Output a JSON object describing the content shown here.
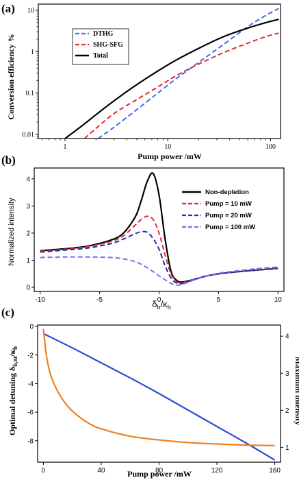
{
  "chart_data": [
    {
      "panel": "(a)",
      "type": "line",
      "xlabel": "Pump power /mW",
      "ylabel": "Conversion efficiency %",
      "xscale": "log",
      "yscale": "log",
      "xlim": [
        0.55,
        125
      ],
      "ylim": [
        0.008,
        14
      ],
      "xticks": [
        {
          "value": 1,
          "label": "1"
        },
        {
          "value": 10,
          "label": "10"
        },
        {
          "value": 100,
          "label": "100"
        }
      ],
      "yticks": [
        {
          "value": 0.01,
          "label": "0.01"
        },
        {
          "value": 0.1,
          "label": "0.1"
        },
        {
          "value": 1,
          "label": "1"
        },
        {
          "value": 10,
          "label": "10"
        }
      ],
      "legend_position": "top-left",
      "series": [
        {
          "name": "DTHG",
          "color": "#3a6ee8",
          "dash": "dashed",
          "x": [
            2.1,
            3,
            5,
            8,
            12,
            20,
            35,
            60,
            90,
            120
          ],
          "y": [
            0.008,
            0.015,
            0.04,
            0.1,
            0.22,
            0.55,
            1.5,
            4,
            7.5,
            11
          ]
        },
        {
          "name": "SHG-SFG",
          "color": "#e8262a",
          "dash": "dashed",
          "x": [
            1.55,
            2,
            3,
            5,
            8,
            12,
            20,
            35,
            60,
            90,
            120
          ],
          "y": [
            0.008,
            0.014,
            0.032,
            0.07,
            0.14,
            0.26,
            0.5,
            0.95,
            1.6,
            2.3,
            2.8
          ]
        },
        {
          "name": "Total",
          "color": "#000000",
          "dash": "solid",
          "x": [
            1,
            1.5,
            2,
            3,
            5,
            8,
            12,
            20,
            35,
            60,
            90,
            120
          ],
          "y": [
            0.008,
            0.017,
            0.03,
            0.065,
            0.16,
            0.34,
            0.62,
            1.2,
            2.3,
            3.7,
            5,
            6
          ]
        }
      ]
    },
    {
      "panel": "(b)",
      "type": "line",
      "xlabel": "δb/κb",
      "ylabel": "Normalized intensity",
      "xlim": [
        -10.5,
        10.5
      ],
      "ylim": [
        -0.15,
        4.4
      ],
      "xticks": [
        {
          "value": -10,
          "label": "-10"
        },
        {
          "value": -5,
          "label": "-5"
        },
        {
          "value": 0,
          "label": "0"
        },
        {
          "value": 5,
          "label": "5"
        },
        {
          "value": 10,
          "label": "10"
        }
      ],
      "yticks": [
        {
          "value": 0,
          "label": "0"
        },
        {
          "value": 1,
          "label": "1"
        },
        {
          "value": 2,
          "label": "2"
        },
        {
          "value": 3,
          "label": "3"
        },
        {
          "value": 4,
          "label": "4"
        }
      ],
      "legend_position": "top-right",
      "series": [
        {
          "name": "Non-depletion",
          "color": "#000000",
          "dash": "solid",
          "x": [
            -10,
            -8,
            -6,
            -4,
            -3,
            -2,
            -1.5,
            -1,
            -0.5,
            0,
            0.5,
            1,
            1.5,
            2,
            3,
            4,
            5,
            6,
            8,
            10
          ],
          "y": [
            1.35,
            1.42,
            1.52,
            1.75,
            2.0,
            2.6,
            3.2,
            3.9,
            4.2,
            3.4,
            1.8,
            0.6,
            0.25,
            0.2,
            0.3,
            0.42,
            0.5,
            0.55,
            0.63,
            0.7
          ]
        },
        {
          "name": "Pump = 10 mW",
          "color": "#e8262a",
          "dash": "dashed",
          "x": [
            -10,
            -8,
            -6,
            -4,
            -3,
            -2,
            -1.5,
            -1,
            -0.5,
            0,
            0.5,
            1,
            1.5,
            2,
            3,
            4,
            5,
            6,
            8,
            10
          ],
          "y": [
            1.33,
            1.4,
            1.5,
            1.7,
            1.9,
            2.3,
            2.5,
            2.62,
            2.5,
            2.0,
            1.2,
            0.5,
            0.2,
            0.18,
            0.3,
            0.42,
            0.5,
            0.55,
            0.63,
            0.7
          ]
        },
        {
          "name": "Pump = 20 mW",
          "color": "#1a2fb0",
          "dash": "dashed",
          "x": [
            -10,
            -8,
            -6,
            -4,
            -3,
            -2,
            -1.5,
            -1,
            -0.5,
            0,
            0.5,
            1,
            1.5,
            2,
            3,
            4,
            5,
            6,
            8,
            10
          ],
          "y": [
            1.3,
            1.37,
            1.45,
            1.62,
            1.78,
            1.98,
            2.05,
            2.03,
            1.8,
            1.4,
            0.8,
            0.35,
            0.15,
            0.15,
            0.3,
            0.42,
            0.5,
            0.55,
            0.63,
            0.7
          ]
        },
        {
          "name": "Pump = 100 mW",
          "color": "#7b6ef0",
          "dash": "dashed",
          "x": [
            -10,
            -8,
            -6,
            -4,
            -3,
            -2,
            -1.5,
            -1,
            -0.5,
            0,
            0.5,
            1,
            1.5,
            2,
            3,
            4,
            5,
            6,
            8,
            10
          ],
          "y": [
            1.1,
            1.12,
            1.12,
            1.1,
            1.05,
            0.95,
            0.85,
            0.72,
            0.58,
            0.42,
            0.28,
            0.15,
            0.08,
            0.12,
            0.28,
            0.42,
            0.52,
            0.58,
            0.68,
            0.75
          ]
        }
      ]
    },
    {
      "panel": "(c)",
      "type": "line",
      "xlabel": "Pump power /mW",
      "ylabel": "Optimal detuning δb,m/κb",
      "ylabel_right": "Maximum intensity",
      "xlim": [
        -4,
        164
      ],
      "ylim": [
        -9.5,
        0.1
      ],
      "ylim_right": [
        0.6,
        4.3
      ],
      "xticks": [
        {
          "value": 0,
          "label": "0"
        },
        {
          "value": 40,
          "label": "40"
        },
        {
          "value": 80,
          "label": "80"
        },
        {
          "value": 120,
          "label": "120"
        },
        {
          "value": 160,
          "label": "160"
        }
      ],
      "yticks": [
        {
          "value": 0,
          "label": "0"
        },
        {
          "value": -2,
          "label": "-2"
        },
        {
          "value": -4,
          "label": "-4"
        },
        {
          "value": -6,
          "label": "-6"
        },
        {
          "value": -8,
          "label": "-8"
        }
      ],
      "yticks_right": [
        {
          "value": 1,
          "label": "1"
        },
        {
          "value": 2,
          "label": "2"
        },
        {
          "value": 3,
          "label": "3"
        },
        {
          "value": 4,
          "label": "4"
        }
      ],
      "series": [
        {
          "name": "",
          "axis": "left",
          "color": "#2b4bd8",
          "dash": "solid",
          "x": [
            0,
            20,
            40,
            60,
            80,
            100,
            120,
            140,
            160
          ],
          "y": [
            -0.5,
            -1.5,
            -2.55,
            -3.6,
            -4.7,
            -5.85,
            -7.0,
            -8.15,
            -9.35
          ]
        },
        {
          "name": "",
          "axis": "right",
          "color": "#f07f1e",
          "dash": "solid",
          "x": [
            0,
            2,
            5,
            10,
            15,
            20,
            30,
            40,
            60,
            80,
            100,
            120,
            140,
            155,
            160
          ],
          "y": [
            4.2,
            3.5,
            2.95,
            2.5,
            2.2,
            1.98,
            1.68,
            1.5,
            1.3,
            1.2,
            1.13,
            1.09,
            1.06,
            1.05,
            1.05
          ]
        }
      ]
    }
  ]
}
